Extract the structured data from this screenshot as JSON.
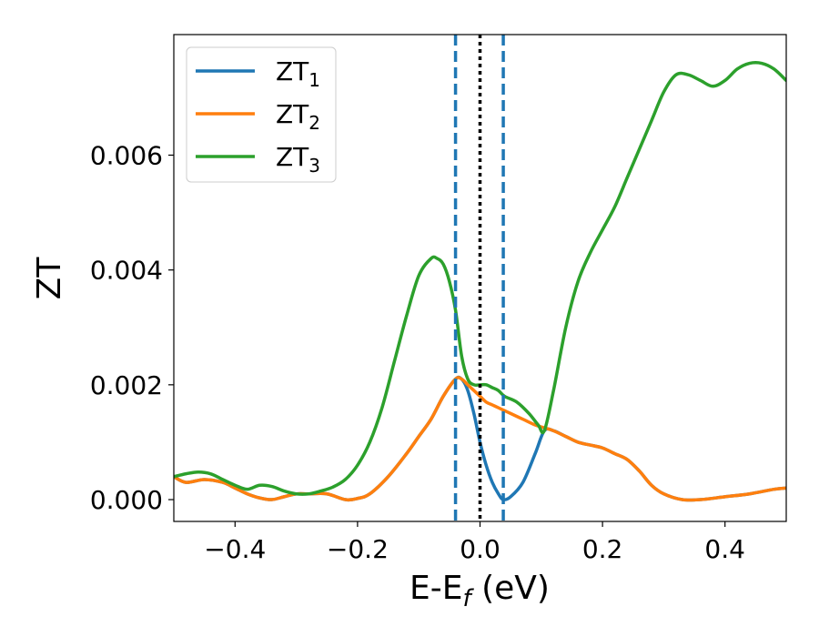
{
  "chart_data": {
    "type": "line",
    "title": "",
    "xlabel": "E-E",
    "xlabel_sub": "f",
    "xlabel_unit": " (eV)",
    "ylabel": "ZT",
    "xlim": [
      -0.5,
      0.5
    ],
    "ylim": [
      -0.00038,
      0.0081
    ],
    "xticks": [
      -0.4,
      -0.2,
      0.0,
      0.2,
      0.4
    ],
    "xtick_labels": [
      "−0.4",
      "−0.2",
      "0.0",
      "0.2",
      "0.4"
    ],
    "yticks": [
      0.0,
      0.002,
      0.004,
      0.006
    ],
    "ytick_labels": [
      "0.000",
      "0.002",
      "0.004",
      "0.006"
    ],
    "grid": false,
    "legend_position": "top-left",
    "vlines": [
      {
        "x": -0.04,
        "color": "#1f77b4",
        "style": "dashed"
      },
      {
        "x": 0.0,
        "color": "#000000",
        "style": "dotted"
      },
      {
        "x": 0.038,
        "color": "#1f77b4",
        "style": "dashed"
      }
    ],
    "series": [
      {
        "name": "ZT",
        "sub": "1",
        "color": "#1f77b4",
        "x": [
          -0.5,
          -0.48,
          -0.45,
          -0.42,
          -0.4,
          -0.38,
          -0.36,
          -0.34,
          -0.32,
          -0.3,
          -0.28,
          -0.25,
          -0.22,
          -0.2,
          -0.18,
          -0.15,
          -0.12,
          -0.1,
          -0.08,
          -0.06,
          -0.04,
          -0.03,
          -0.02,
          -0.01,
          0.0,
          0.01,
          0.02,
          0.03,
          0.038,
          0.05,
          0.07,
          0.09,
          0.105,
          0.12,
          0.14,
          0.16,
          0.18,
          0.2,
          0.22,
          0.24,
          0.26,
          0.28,
          0.3,
          0.33,
          0.36,
          0.4,
          0.44,
          0.48,
          0.5
        ],
        "y": [
          0.0004,
          0.0003,
          0.00035,
          0.0003,
          0.0002,
          0.0001,
          3e-05,
          0.0,
          5e-05,
          0.0001,
          0.0001,
          0.0001,
          0.0,
          2e-05,
          0.0001,
          0.0004,
          0.0008,
          0.0011,
          0.0014,
          0.0018,
          0.0021,
          0.0021,
          0.0019,
          0.0015,
          0.001,
          0.0006,
          0.0003,
          0.0001,
          0.0,
          5e-05,
          0.0003,
          0.0008,
          0.0012,
          0.0012,
          0.0011,
          0.001,
          0.00095,
          0.0009,
          0.0008,
          0.0007,
          0.0005,
          0.00025,
          0.0001,
          0.0,
          0.0,
          5e-05,
          0.0001,
          0.00018,
          0.0002
        ]
      },
      {
        "name": "ZT",
        "sub": "2",
        "color": "#ff7f0e",
        "x": [
          -0.5,
          -0.48,
          -0.45,
          -0.42,
          -0.4,
          -0.38,
          -0.36,
          -0.34,
          -0.32,
          -0.3,
          -0.28,
          -0.25,
          -0.22,
          -0.2,
          -0.18,
          -0.15,
          -0.12,
          -0.1,
          -0.08,
          -0.06,
          -0.04,
          -0.03,
          -0.02,
          -0.01,
          0.0,
          0.01,
          0.02,
          0.03,
          0.04,
          0.05,
          0.07,
          0.09,
          0.105,
          0.12,
          0.14,
          0.16,
          0.18,
          0.2,
          0.22,
          0.24,
          0.26,
          0.28,
          0.3,
          0.33,
          0.36,
          0.4,
          0.44,
          0.48,
          0.5
        ],
        "y": [
          0.0004,
          0.0003,
          0.00035,
          0.0003,
          0.0002,
          0.0001,
          3e-05,
          0.0,
          5e-05,
          0.0001,
          0.0001,
          0.0001,
          0.0,
          2e-05,
          0.0001,
          0.0004,
          0.0008,
          0.0011,
          0.0014,
          0.0018,
          0.0021,
          0.0021,
          0.002,
          0.0019,
          0.0018,
          0.0017,
          0.00165,
          0.0016,
          0.00155,
          0.0015,
          0.0014,
          0.0013,
          0.00125,
          0.0012,
          0.0011,
          0.001,
          0.00095,
          0.0009,
          0.0008,
          0.0007,
          0.0005,
          0.00025,
          0.0001,
          0.0,
          0.0,
          5e-05,
          0.0001,
          0.00018,
          0.0002
        ]
      },
      {
        "name": "ZT",
        "sub": "3",
        "color": "#2ca02c",
        "x": [
          -0.5,
          -0.48,
          -0.46,
          -0.44,
          -0.42,
          -0.4,
          -0.38,
          -0.36,
          -0.34,
          -0.32,
          -0.3,
          -0.28,
          -0.26,
          -0.24,
          -0.22,
          -0.2,
          -0.18,
          -0.16,
          -0.14,
          -0.12,
          -0.1,
          -0.08,
          -0.07,
          -0.06,
          -0.05,
          -0.04,
          -0.03,
          -0.02,
          -0.01,
          0.0,
          0.01,
          0.02,
          0.03,
          0.04,
          0.06,
          0.08,
          0.095,
          0.105,
          0.12,
          0.14,
          0.16,
          0.18,
          0.2,
          0.22,
          0.24,
          0.26,
          0.28,
          0.3,
          0.32,
          0.34,
          0.36,
          0.38,
          0.4,
          0.42,
          0.44,
          0.46,
          0.48,
          0.5
        ],
        "y": [
          0.0004,
          0.00045,
          0.00048,
          0.00045,
          0.00035,
          0.00025,
          0.00018,
          0.00025,
          0.00023,
          0.00015,
          0.0001,
          0.0001,
          0.00015,
          0.00022,
          0.00035,
          0.0006,
          0.001,
          0.0016,
          0.0024,
          0.0032,
          0.0039,
          0.0042,
          0.0042,
          0.0041,
          0.0038,
          0.0033,
          0.0025,
          0.0021,
          0.002,
          0.002,
          0.002,
          0.00195,
          0.0019,
          0.0018,
          0.0017,
          0.0015,
          0.0013,
          0.0012,
          0.0019,
          0.003,
          0.0038,
          0.0043,
          0.0047,
          0.0051,
          0.0056,
          0.0061,
          0.0066,
          0.0071,
          0.0074,
          0.0074,
          0.0073,
          0.0072,
          0.0073,
          0.0075,
          0.0076,
          0.0076,
          0.0075,
          0.0073
        ]
      }
    ]
  }
}
